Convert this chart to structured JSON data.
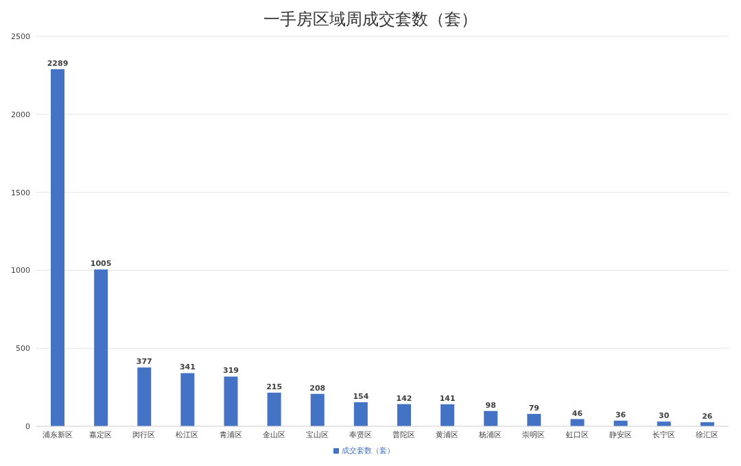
{
  "chart_data": {
    "type": "bar",
    "title": "一手房区域周成交套数（套）",
    "categories": [
      "浦东新区",
      "嘉定区",
      "闵行区",
      "松江区",
      "青浦区",
      "金山区",
      "宝山区",
      "奉贤区",
      "普陀区",
      "黄浦区",
      "杨浦区",
      "崇明区",
      "虹口区",
      "静安区",
      "长宁区",
      "徐汇区"
    ],
    "series": [
      {
        "name": "成交套数（套）",
        "color": "#4472c4",
        "values": [
          2289,
          1005,
          377,
          341,
          319,
          215,
          208,
          154,
          142,
          141,
          98,
          79,
          46,
          36,
          30,
          26
        ]
      }
    ],
    "ylim": [
      0,
      2500
    ],
    "yticks": [
      0,
      500,
      1000,
      1500,
      2000,
      2500
    ],
    "grid": "y",
    "legend": "bottom",
    "data_labels": true
  }
}
